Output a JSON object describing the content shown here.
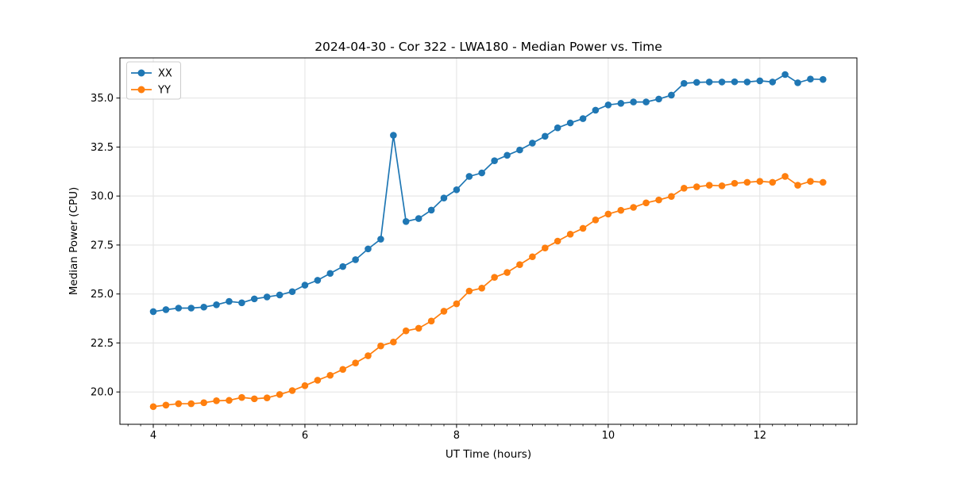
{
  "chart_data": {
    "type": "line",
    "title": "2024-04-30 - Cor 322 - LWA180 - Median Power vs. Time",
    "xlabel": "UT Time (hours)",
    "ylabel": "Median Power (CPU)",
    "xlim": [
      3.56,
      13.28
    ],
    "ylim": [
      18.35,
      37.05
    ],
    "xticks": [
      4,
      6,
      8,
      10,
      12
    ],
    "yticks": [
      20.0,
      22.5,
      25.0,
      27.5,
      30.0,
      32.5,
      35.0
    ],
    "minor_xtick_step": 0.16667,
    "grid": true,
    "legend_position": "upper left",
    "x": [
      4.0,
      4.167,
      4.333,
      4.5,
      4.667,
      4.833,
      5.0,
      5.167,
      5.333,
      5.5,
      5.667,
      5.833,
      6.0,
      6.167,
      6.333,
      6.5,
      6.667,
      6.833,
      7.0,
      7.167,
      7.333,
      7.5,
      7.667,
      7.833,
      8.0,
      8.167,
      8.333,
      8.5,
      8.667,
      8.833,
      9.0,
      9.167,
      9.333,
      9.5,
      9.667,
      9.833,
      10.0,
      10.167,
      10.333,
      10.5,
      10.667,
      10.833,
      11.0,
      11.167,
      11.333,
      11.5,
      11.667,
      11.833,
      12.0,
      12.167,
      12.333,
      12.5,
      12.667,
      12.833
    ],
    "series": [
      {
        "name": "XX",
        "color": "#1f77b4",
        "values": [
          24.1,
          24.2,
          24.28,
          24.28,
          24.33,
          24.45,
          24.62,
          24.55,
          24.75,
          24.85,
          24.95,
          25.12,
          25.45,
          25.7,
          26.05,
          26.4,
          26.75,
          27.3,
          27.8,
          33.1,
          28.7,
          28.85,
          29.28,
          29.9,
          30.32,
          31.0,
          31.18,
          31.8,
          32.08,
          32.35,
          32.7,
          33.05,
          33.48,
          33.73,
          33.95,
          34.38,
          34.65,
          34.73,
          34.8,
          34.8,
          34.95,
          35.15,
          35.75,
          35.8,
          35.82,
          35.82,
          35.83,
          35.82,
          35.88,
          35.82,
          36.2,
          35.78,
          35.97,
          35.95
        ]
      },
      {
        "name": "YY",
        "color": "#ff7f0e",
        "values": [
          19.25,
          19.33,
          19.4,
          19.4,
          19.45,
          19.55,
          19.57,
          19.72,
          19.65,
          19.7,
          19.87,
          20.07,
          20.32,
          20.6,
          20.85,
          21.15,
          21.48,
          21.85,
          22.35,
          22.55,
          23.12,
          23.25,
          23.62,
          24.12,
          24.5,
          25.15,
          25.3,
          25.85,
          26.1,
          26.5,
          26.9,
          27.35,
          27.7,
          28.05,
          28.35,
          28.78,
          29.08,
          29.27,
          29.42,
          29.65,
          29.8,
          29.98,
          30.4,
          30.47,
          30.55,
          30.52,
          30.65,
          30.7,
          30.75,
          30.7,
          31.0,
          30.55,
          30.75,
          30.7
        ]
      }
    ],
    "styles": {
      "grid_color": "#e2e2e2",
      "spine_color": "#000000",
      "tick_color": "#000000",
      "legend_border_color": "#cccccc",
      "legend_bg": "rgba(255,255,255,0.9)",
      "background": "#ffffff"
    }
  }
}
